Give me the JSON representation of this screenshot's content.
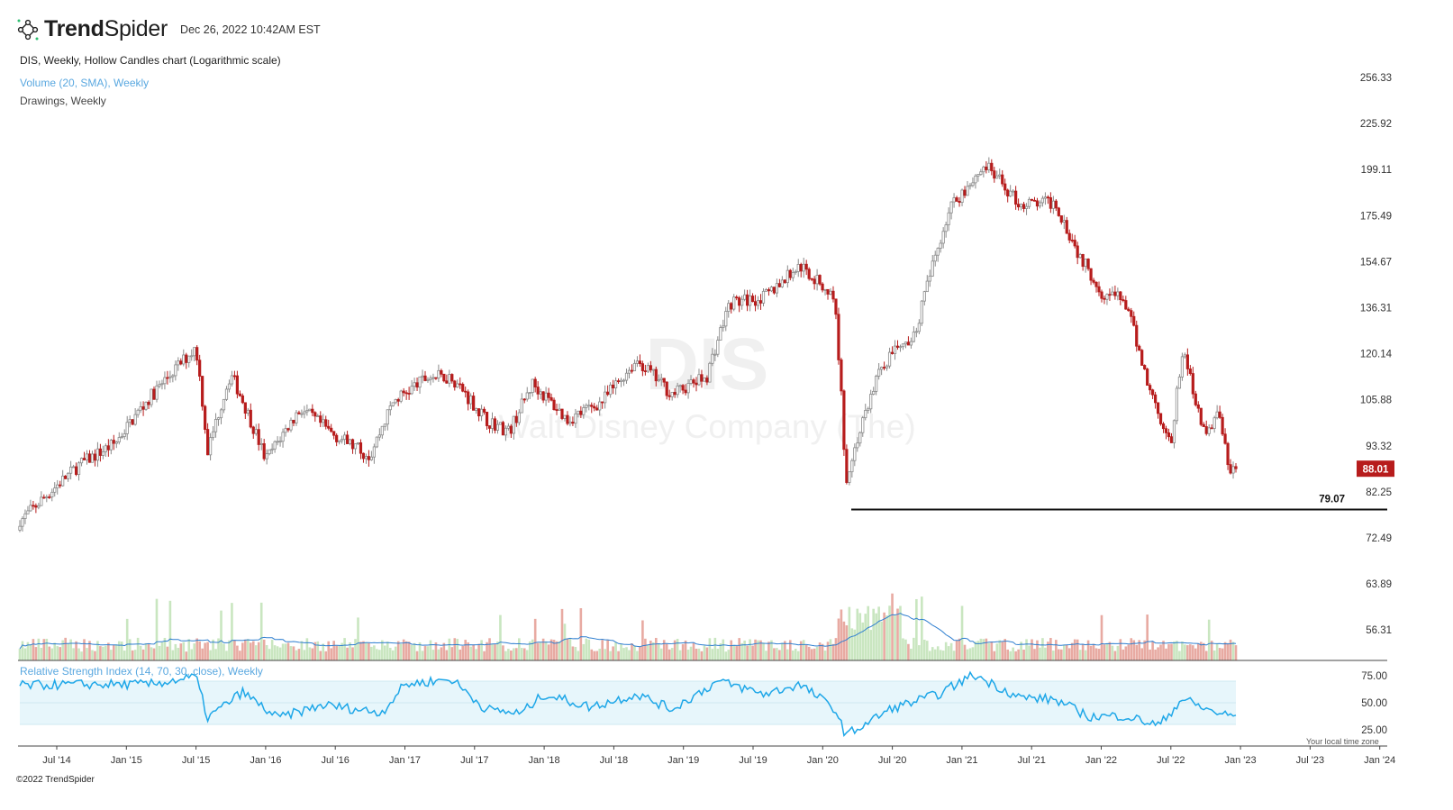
{
  "header": {
    "brand_bold": "Trend",
    "brand_light": "Spider",
    "timestamp": "Dec 26, 2022 10:42AM EST"
  },
  "chart_info": {
    "main": "DIS, Weekly, Hollow Candles chart (Logarithmic scale)",
    "volume": "Volume (20, SMA), Weekly",
    "drawings": "Drawings, Weekly",
    "rsi": "Relative Strength Index (14, 70, 30, close), Weekly"
  },
  "watermark": {
    "ticker": "DIS",
    "name": "Walt Disney Company (The)"
  },
  "footer": {
    "timezone": "Your local time zone",
    "copyright": "©2022 TrendSpider"
  },
  "colors": {
    "up": "#8a8a8a",
    "down": "#b71c1c",
    "vol_up": "#c9e6c0",
    "vol_down": "#e8aaa2",
    "sma": "#2f7fd0",
    "rsi": "#1ea7e8",
    "rsi_band": "#e7f6fb",
    "last_price_bg": "#b71c1c",
    "support": "#111111"
  },
  "chart_data": {
    "type": "candlestick",
    "ticker": "DIS",
    "scale": "log",
    "price_axis_ticks": [
      "256.33",
      "225.92",
      "199.11",
      "175.49",
      "154.67",
      "136.31",
      "120.14",
      "105.88",
      "93.32",
      "82.25",
      "72.49",
      "63.89",
      "56.31"
    ],
    "rsi_axis_ticks": [
      "75.00",
      "50.00",
      "25.00"
    ],
    "x_ticks": [
      "Jul '14",
      "Jan '15",
      "Jul '15",
      "Jan '16",
      "Jul '16",
      "Jan '17",
      "Jul '17",
      "Jan '18",
      "Jul '18",
      "Jan '19",
      "Jul '19",
      "Jan '20",
      "Jul '20",
      "Jan '21",
      "Jul '21",
      "Jan '22",
      "Jul '22",
      "Jan '23",
      "Jul '23",
      "Jan '24"
    ],
    "last_price": "88.01",
    "support_level": {
      "label": "79.07",
      "value": 79.07
    },
    "price_keypoints": [
      {
        "date": "2014-04",
        "close": 77
      },
      {
        "date": "2014-09",
        "close": 89
      },
      {
        "date": "2014-12",
        "close": 94
      },
      {
        "date": "2015-03",
        "close": 106
      },
      {
        "date": "2015-07",
        "close": 121
      },
      {
        "date": "2015-08",
        "close": 92
      },
      {
        "date": "2015-10",
        "close": 113
      },
      {
        "date": "2016-01",
        "close": 90
      },
      {
        "date": "2016-04",
        "close": 103
      },
      {
        "date": "2016-07",
        "close": 96
      },
      {
        "date": "2016-10",
        "close": 91
      },
      {
        "date": "2016-12",
        "close": 105
      },
      {
        "date": "2017-03",
        "close": 112
      },
      {
        "date": "2017-05",
        "close": 112
      },
      {
        "date": "2017-08",
        "close": 100
      },
      {
        "date": "2017-10",
        "close": 97
      },
      {
        "date": "2017-12",
        "close": 110
      },
      {
        "date": "2018-03",
        "close": 100
      },
      {
        "date": "2018-06",
        "close": 105
      },
      {
        "date": "2018-09",
        "close": 117
      },
      {
        "date": "2018-12",
        "close": 107
      },
      {
        "date": "2019-03",
        "close": 112
      },
      {
        "date": "2019-05",
        "close": 136
      },
      {
        "date": "2019-08",
        "close": 138
      },
      {
        "date": "2019-11",
        "close": 150
      },
      {
        "date": "2020-02",
        "close": 138
      },
      {
        "date": "2020-03",
        "close": 85
      },
      {
        "date": "2020-06",
        "close": 115
      },
      {
        "date": "2020-09",
        "close": 126
      },
      {
        "date": "2020-12",
        "close": 175
      },
      {
        "date": "2021-03",
        "close": 195
      },
      {
        "date": "2021-06",
        "close": 176
      },
      {
        "date": "2021-09",
        "close": 177
      },
      {
        "date": "2021-11",
        "close": 155
      },
      {
        "date": "2022-01",
        "close": 140
      },
      {
        "date": "2022-03",
        "close": 137
      },
      {
        "date": "2022-05",
        "close": 110
      },
      {
        "date": "2022-07",
        "close": 93
      },
      {
        "date": "2022-08",
        "close": 120
      },
      {
        "date": "2022-10",
        "close": 95
      },
      {
        "date": "2022-11",
        "close": 103
      },
      {
        "date": "2022-12",
        "close": 88
      }
    ],
    "rsi_keypoints": [
      {
        "date": "2014-04",
        "rsi": 66
      },
      {
        "date": "2014-09",
        "rsi": 67
      },
      {
        "date": "2015-03",
        "rsi": 67
      },
      {
        "date": "2015-07",
        "rsi": 74
      },
      {
        "date": "2015-08",
        "rsi": 36
      },
      {
        "date": "2015-11",
        "rsi": 60
      },
      {
        "date": "2016-02",
        "rsi": 36
      },
      {
        "date": "2016-06",
        "rsi": 48
      },
      {
        "date": "2016-11",
        "rsi": 41
      },
      {
        "date": "2017-01",
        "rsi": 67
      },
      {
        "date": "2017-05",
        "rsi": 72
      },
      {
        "date": "2017-08",
        "rsi": 44
      },
      {
        "date": "2017-11",
        "rsi": 40
      },
      {
        "date": "2018-01",
        "rsi": 58
      },
      {
        "date": "2018-05",
        "rsi": 46
      },
      {
        "date": "2018-09",
        "rsi": 58
      },
      {
        "date": "2018-12",
        "rsi": 44
      },
      {
        "date": "2019-04",
        "rsi": 70
      },
      {
        "date": "2019-08",
        "rsi": 58
      },
      {
        "date": "2019-11",
        "rsi": 67
      },
      {
        "date": "2020-02",
        "rsi": 45
      },
      {
        "date": "2020-03",
        "rsi": 20
      },
      {
        "date": "2020-07",
        "rsi": 45
      },
      {
        "date": "2020-11",
        "rsi": 58
      },
      {
        "date": "2021-02",
        "rsi": 76
      },
      {
        "date": "2021-06",
        "rsi": 55
      },
      {
        "date": "2021-09",
        "rsi": 53
      },
      {
        "date": "2021-12",
        "rsi": 37
      },
      {
        "date": "2022-03",
        "rsi": 38
      },
      {
        "date": "2022-06",
        "rsi": 29
      },
      {
        "date": "2022-08",
        "rsi": 54
      },
      {
        "date": "2022-10",
        "rsi": 44
      },
      {
        "date": "2022-12",
        "rsi": 38
      }
    ],
    "rsi_bands": [
      30,
      50,
      70
    ]
  }
}
